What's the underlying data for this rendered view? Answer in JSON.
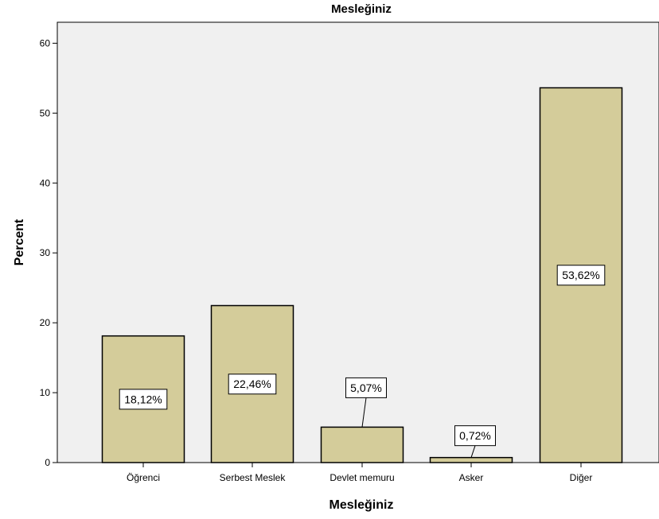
{
  "chart_data": {
    "type": "bar",
    "title": "Mesleğiniz",
    "xlabel": "Mesleğiniz",
    "ylabel": "Percent",
    "categories": [
      "Öğrenci",
      "Serbest Meslek",
      "Devlet memuru",
      "Asker",
      "Diğer"
    ],
    "values": [
      18.12,
      22.46,
      5.07,
      0.72,
      53.62
    ],
    "data_labels": [
      "18,12%",
      "22,46%",
      "5,07%",
      "0,72%",
      "53,62%"
    ],
    "ylim": [
      0,
      63
    ],
    "yticks": [
      0,
      10,
      20,
      30,
      40,
      50,
      60
    ],
    "grid": false,
    "legend": "none",
    "colors": {
      "bar_fill": "#d4cc9a",
      "bar_stroke": "#000000",
      "plot_background": "#f0f0f0",
      "label_box_fill": "#ffffff"
    }
  }
}
